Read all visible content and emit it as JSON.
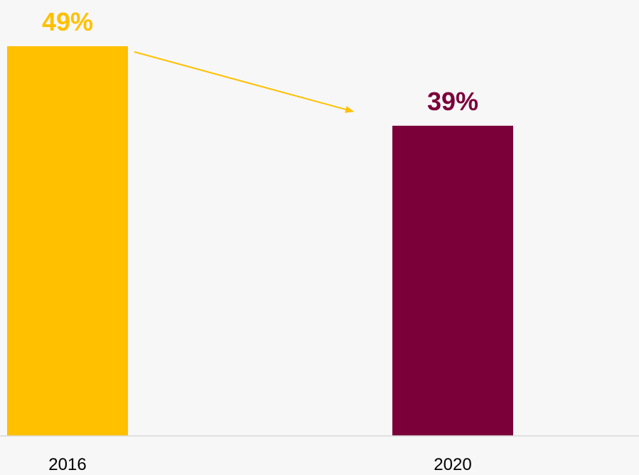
{
  "chart_data": {
    "type": "bar",
    "categories": [
      "2016",
      "2020"
    ],
    "values": [
      49,
      39
    ],
    "value_labels": [
      "49%",
      "39%"
    ],
    "colors": [
      "#FFC000",
      "#7B003A"
    ],
    "ylim": [
      0,
      60
    ],
    "grid": false,
    "legend": "none",
    "annotation": "arrow from 2016 bar top toward 2020 bar top",
    "annotation_color": "#FFC000"
  },
  "colors": {
    "background": "#f7f7f7",
    "baseline": "#d9d9d9"
  }
}
